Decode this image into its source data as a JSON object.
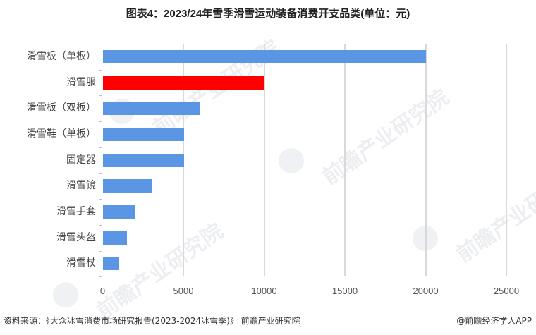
{
  "title": "图表4：2023/24年雪季滑雪运动装备消费开支品类(单位：元)",
  "footer": {
    "source": "资料来源：《大众冰雪消费市场研究报告(2023-2024冰雪季)》 前瞻产业研究院",
    "credit": "@前瞻经济学人APP"
  },
  "watermark": "前瞻产业研究院",
  "colors": {
    "default_bar": "#5B96E4",
    "highlight_bar": "#FF0000",
    "grid": "#D9D9D9"
  },
  "chart_data": {
    "type": "bar",
    "orientation": "horizontal",
    "title": "图表4：2023/24年雪季滑雪运动装备消费开支品类(单位：元)",
    "xlabel": "",
    "ylabel": "",
    "unit": "元",
    "xlim": [
      0,
      25000
    ],
    "xticks": [
      0,
      5000,
      10000,
      15000,
      20000,
      25000
    ],
    "xtick_labels": [
      "0",
      "5000",
      "10000",
      "15000",
      "20000",
      "25000"
    ],
    "grid": "vertical",
    "legend": "none",
    "categories": [
      "滑雪板（单板）",
      "滑雪服",
      "滑雪板（双板）",
      "滑雪鞋（单板）",
      "固定器",
      "滑雪镜",
      "滑雪手套",
      "滑雪头盔",
      "滑雪杖"
    ],
    "values": [
      20000,
      10000,
      6000,
      5000,
      5000,
      3000,
      2000,
      1500,
      1000
    ],
    "highlight_index": 1,
    "bar_colors": [
      "#5B96E4",
      "#FF0000",
      "#5B96E4",
      "#5B96E4",
      "#5B96E4",
      "#5B96E4",
      "#5B96E4",
      "#5B96E4",
      "#5B96E4"
    ]
  }
}
